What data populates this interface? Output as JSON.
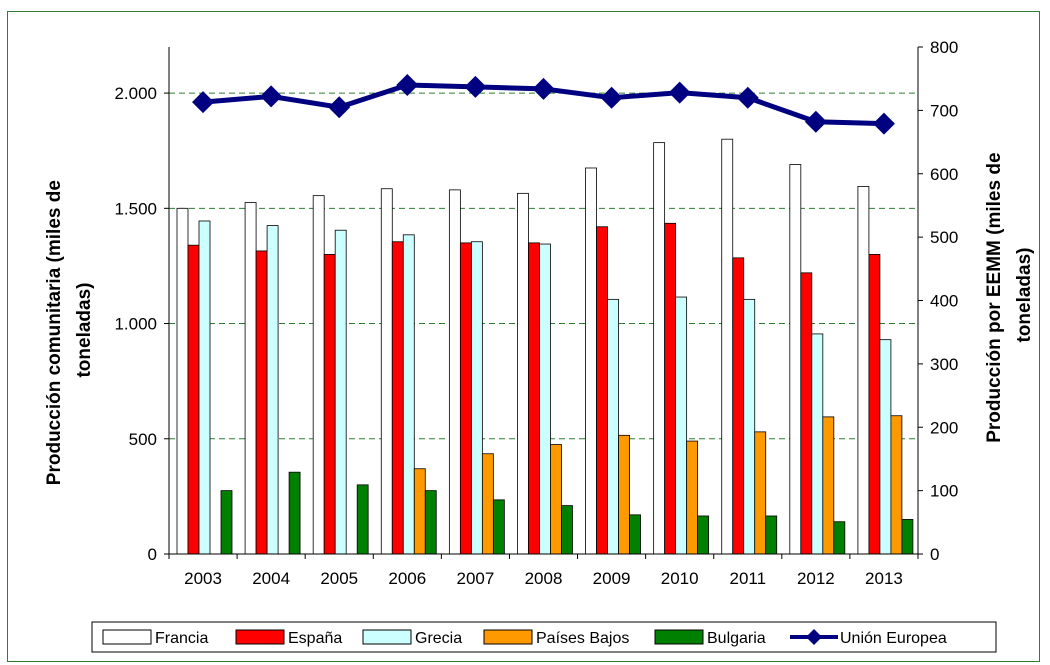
{
  "chart_data": {
    "type": "bar",
    "categories": [
      "2003",
      "2004",
      "2005",
      "2006",
      "2007",
      "2008",
      "2009",
      "2010",
      "2011",
      "2012",
      "2013"
    ],
    "series": [
      {
        "name": "Francia",
        "axis": "left",
        "color": "#ffffff",
        "values": [
          1500,
          1525,
          1555,
          1585,
          1580,
          1565,
          1675,
          1785,
          1800,
          1690,
          1595
        ]
      },
      {
        "name": "España",
        "axis": "left",
        "color": "#ff0000",
        "values": [
          1340,
          1315,
          1300,
          1355,
          1350,
          1350,
          1420,
          1435,
          1285,
          1220,
          1300
        ]
      },
      {
        "name": "Grecia",
        "axis": "left",
        "color": "#ccffff",
        "values": [
          1445,
          1425,
          1405,
          1385,
          1355,
          1345,
          1105,
          1115,
          1105,
          955,
          930
        ]
      },
      {
        "name": "Países Bajos",
        "axis": "left",
        "color": "#ff9900",
        "values": [
          0,
          0,
          0,
          370,
          435,
          475,
          515,
          490,
          530,
          595,
          600
        ]
      },
      {
        "name": "Bulgaria",
        "axis": "left",
        "color": "#008000",
        "values": [
          275,
          355,
          300,
          275,
          235,
          210,
          170,
          165,
          165,
          140,
          150
        ]
      },
      {
        "name": "Unión Europea",
        "axis": "right",
        "type": "line",
        "color": "#000080",
        "values": [
          713,
          722,
          705,
          740,
          737,
          734,
          720,
          728,
          720,
          682,
          679
        ]
      }
    ],
    "left_axis": {
      "label": "Producción comunitaria (miles de toneladas)",
      "label_lines": [
        "Producción comunitaria (miles de",
        "toneladas)"
      ],
      "ylim": [
        0,
        2200
      ],
      "ticks": [
        0,
        500,
        1000,
        1500,
        2000
      ],
      "tick_labels": [
        "0",
        "500",
        "1.000",
        "1.500",
        "2.000"
      ]
    },
    "right_axis": {
      "label": "Producción por EEMM (miles de toneladas)",
      "label_lines": [
        "Producción por EEMM (miles de",
        "toneladas)"
      ],
      "ylim": [
        0,
        800
      ],
      "ticks": [
        0,
        100,
        200,
        300,
        400,
        500,
        600,
        700,
        800
      ],
      "tick_labels": [
        "0",
        "100",
        "200",
        "300",
        "400",
        "500",
        "600",
        "700",
        "800"
      ]
    },
    "gridlines": "horizontal dashed",
    "legend_position": "bottom"
  }
}
